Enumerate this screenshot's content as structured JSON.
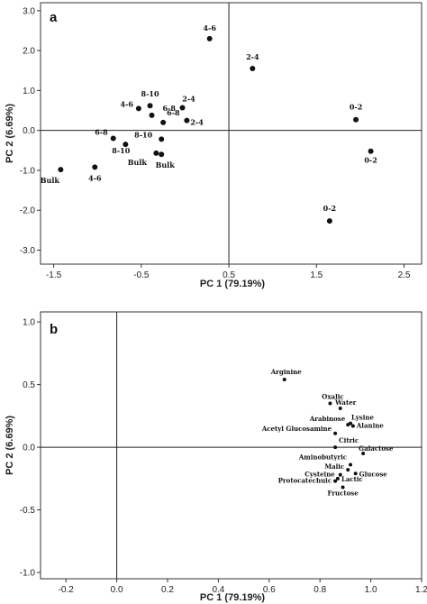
{
  "chart_data": [
    {
      "type": "scatter",
      "panel": "a",
      "xlabel": "PC 1 (79.19%)",
      "ylabel": "PC 2 (6.69%)",
      "xlim": [
        -1.65,
        2.7
      ],
      "ylim": [
        -3.35,
        3.2
      ],
      "xticks": [
        "-1.5",
        "-0.5",
        "0.5",
        "1.5",
        "2.5"
      ],
      "yticks": [
        "3.0",
        "2.0",
        "1.0",
        "0.0",
        "-1.0",
        "-2.0",
        "-3.0"
      ],
      "reference_lines": {
        "x": 0.5,
        "y": 0.0
      },
      "grid": false,
      "points": [
        {
          "label": "4-6",
          "x": 0.28,
          "y": 2.3
        },
        {
          "label": "2-4",
          "x": 0.77,
          "y": 1.55
        },
        {
          "label": "0-2",
          "x": 1.95,
          "y": 0.27
        },
        {
          "label": "0-2",
          "x": 2.12,
          "y": -0.52
        },
        {
          "label": "0-2",
          "x": 1.65,
          "y": -2.27
        },
        {
          "label": "8-10",
          "x": -0.4,
          "y": 0.62
        },
        {
          "label": "4-6",
          "x": -0.53,
          "y": 0.55
        },
        {
          "label": "2-4",
          "x": -0.03,
          "y": 0.57
        },
        {
          "label": "6-8",
          "x": -0.38,
          "y": 0.38
        },
        {
          "label": "6-8",
          "x": -0.25,
          "y": 0.2
        },
        {
          "label": "2-4",
          "x": 0.02,
          "y": 0.25
        },
        {
          "label": "6-8",
          "x": -0.82,
          "y": -0.2
        },
        {
          "label": "8-10",
          "x": -0.68,
          "y": -0.35
        },
        {
          "label": "8-10",
          "x": -0.27,
          "y": -0.22
        },
        {
          "label": "Bulk",
          "x": -0.33,
          "y": -0.57
        },
        {
          "label": "Bulk",
          "x": -0.27,
          "y": -0.6
        },
        {
          "label": "4-6",
          "x": -1.03,
          "y": -0.92
        },
        {
          "label": "Bulk",
          "x": -1.42,
          "y": -0.98
        }
      ]
    },
    {
      "type": "scatter",
      "panel": "b",
      "xlabel": "PC 1 (79.19%)",
      "ylabel": "PC 2 (6.69%)",
      "xlim": [
        -0.3,
        1.2
      ],
      "ylim": [
        -1.05,
        1.08
      ],
      "xticks": [
        "-0.2",
        "0.0",
        "0.2",
        "0.4",
        "0.6",
        "0.8",
        "1.0",
        "1.2"
      ],
      "yticks": [
        "1.0",
        "0.5",
        "0.0",
        "-0.5",
        "-1.0"
      ],
      "reference_lines": {
        "x": 0.0,
        "y": 0.0
      },
      "grid": false,
      "points": [
        {
          "label": "Arginine",
          "x": 0.66,
          "y": 0.54
        },
        {
          "label": "Oxalic",
          "x": 0.84,
          "y": 0.35
        },
        {
          "label": "Water",
          "x": 0.88,
          "y": 0.31
        },
        {
          "label": "Arabinose",
          "x": 0.91,
          "y": 0.18
        },
        {
          "label": "Lysine",
          "x": 0.92,
          "y": 0.19
        },
        {
          "label": "Alanine",
          "x": 0.93,
          "y": 0.17
        },
        {
          "label": "Acetyl Glucosamine",
          "x": 0.86,
          "y": 0.11
        },
        {
          "label": "Citric",
          "x": 0.86,
          "y": 0.0
        },
        {
          "label": "Galactose",
          "x": 0.97,
          "y": -0.05
        },
        {
          "label": "Aminobutyric",
          "x": 0.92,
          "y": -0.14
        },
        {
          "label": "Malic",
          "x": 0.91,
          "y": -0.18
        },
        {
          "label": "Glucose",
          "x": 0.94,
          "y": -0.21
        },
        {
          "label": "Cysteine",
          "x": 0.88,
          "y": -0.22
        },
        {
          "label": "Lactic",
          "x": 0.87,
          "y": -0.25
        },
        {
          "label": "Protocatechuic",
          "x": 0.86,
          "y": -0.27
        },
        {
          "label": "Fructose",
          "x": 0.89,
          "y": -0.32
        }
      ]
    }
  ]
}
